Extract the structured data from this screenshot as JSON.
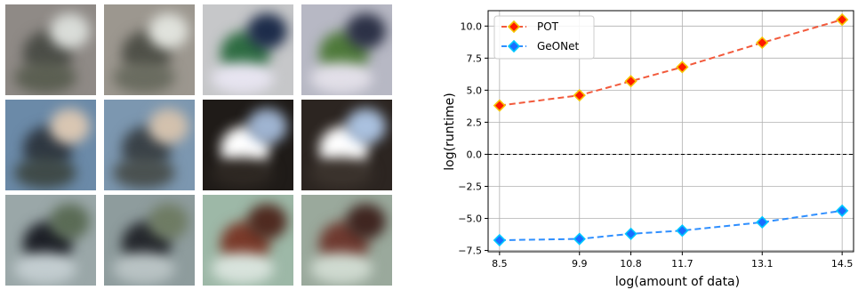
{
  "chart_data": {
    "type": "line",
    "xlabel": "log(amount of data)",
    "ylabel": "log(runtime)",
    "x": [
      8.5,
      9.9,
      10.8,
      11.7,
      13.1,
      14.5
    ],
    "xticks": [
      "8.5",
      "9.9",
      "10.8",
      "11.7",
      "13.1",
      "14.5"
    ],
    "ylim": [
      -7.6,
      11.2
    ],
    "yticks": [
      -7.5,
      -5.0,
      -2.5,
      0.0,
      2.5,
      5.0,
      7.5,
      10.0
    ],
    "ytick_labels": [
      "−7.5",
      "−5.0",
      "−2.5",
      "0.0",
      "2.5",
      "5.0",
      "7.5",
      "10.0"
    ],
    "grid": true,
    "legend_position": "top-left",
    "reference_line": {
      "y": 0.0,
      "style": "dashed",
      "color": "#000000"
    },
    "series": [
      {
        "name": "POT",
        "values": [
          3.8,
          4.6,
          5.7,
          6.8,
          8.7,
          10.5
        ],
        "line_color": "#f25a3c",
        "marker_color": "#ff1a00",
        "marker_edge": "#f5c400"
      },
      {
        "name": "GeONet",
        "values": [
          -6.7,
          -6.6,
          -6.2,
          -5.95,
          -5.3,
          -4.4
        ],
        "line_color": "#2f8fff",
        "marker_color": "#1a6dff",
        "marker_edge": "#00c8ff"
      }
    ]
  },
  "image_grid": {
    "rows": 3,
    "cols": 4,
    "tiles": [
      {
        "bg": "#8f8a86",
        "blobs": [
          "#4b4d47",
          "#d9dcd8",
          "#5b5f52"
        ]
      },
      {
        "bg": "#9c978f",
        "blobs": [
          "#4f5048",
          "#e0e2dc",
          "#6a6c60"
        ]
      },
      {
        "bg": "#c6c7c9",
        "blobs": [
          "#2f6d43",
          "#1d2c4a",
          "#e7e4f0"
        ]
      },
      {
        "bg": "#b7b8c4",
        "blobs": [
          "#4f7a3b",
          "#2c3146",
          "#e2dfe8"
        ]
      },
      {
        "bg": "#6b8aa8",
        "blobs": [
          "#2f3842",
          "#d9c6b2",
          "#3f4a48"
        ]
      },
      {
        "bg": "#7c97b0",
        "blobs": [
          "#3a4248",
          "#d3c1ad",
          "#4a5150"
        ]
      },
      {
        "bg": "#1f1b18",
        "blobs": [
          "#ffffff",
          "#9fb4d1",
          "#2d2722"
        ]
      },
      {
        "bg": "#2c2521",
        "blobs": [
          "#ffffff",
          "#aac1df",
          "#3a322c"
        ]
      },
      {
        "bg": "#9aa7a8",
        "blobs": [
          "#1d2027",
          "#5a6b55",
          "#c3cdd0"
        ]
      },
      {
        "bg": "#8e9c9d",
        "blobs": [
          "#25282d",
          "#6e7b63",
          "#b9c3c4"
        ]
      },
      {
        "bg": "#9db8a7",
        "blobs": [
          "#7a3a2a",
          "#4f2a20",
          "#d8e3dc"
        ]
      },
      {
        "bg": "#9aa99c",
        "blobs": [
          "#6f3a30",
          "#3f2520",
          "#cfdad0"
        ]
      }
    ]
  }
}
